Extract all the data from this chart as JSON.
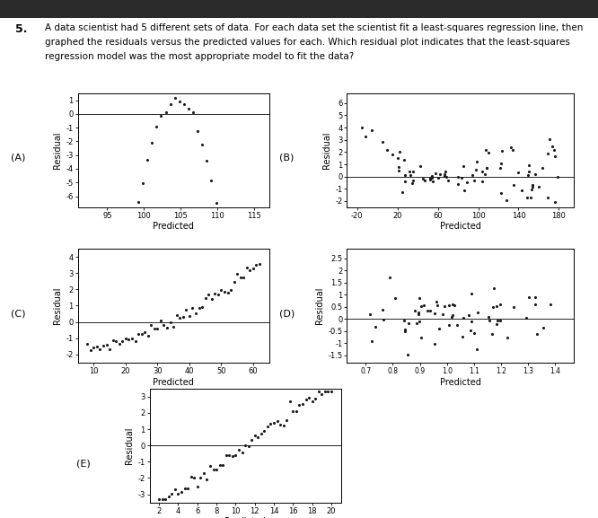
{
  "background_color": "#ffffff",
  "plot_bg": "#ffffff",
  "dot_color": "#1a1a1a",
  "dot_size": 5,
  "title_number": "5.",
  "question_lines": [
    "A data scientist had 5 different sets of data. For each data set the scientist fit a least-squares regression line, then",
    "graphed the residuals versus the predicted values for each. Which residual plot indicates that the least-squares",
    "regression model was the most appropriate model to fit the data?"
  ],
  "plots": [
    {
      "label": "(A)",
      "xlabel": "Predicted",
      "ylabel": "Residual",
      "yticks": [
        1,
        0,
        -1,
        -2,
        -3,
        -4,
        -5,
        -6
      ],
      "xticks": [
        95,
        100,
        105,
        110,
        115
      ],
      "xlim": [
        91,
        117
      ],
      "ylim": [
        -6.8,
        1.5
      ]
    },
    {
      "label": "(B)",
      "xlabel": "Predicted",
      "ylabel": "Residual",
      "yticks": [
        6,
        5,
        4,
        3,
        2,
        1,
        0,
        -1,
        -2
      ],
      "xticks": [
        -20,
        20,
        60,
        100,
        140,
        180
      ],
      "xlim": [
        -30,
        195
      ],
      "ylim": [
        -2.5,
        6.8
      ]
    },
    {
      "label": "(C)",
      "xlabel": "Predicted",
      "ylabel": "Residual",
      "yticks": [
        4,
        3,
        2,
        1,
        0,
        -1,
        -2
      ],
      "xticks": [
        10,
        20,
        30,
        40,
        50,
        60
      ],
      "xlim": [
        5,
        65
      ],
      "ylim": [
        -2.5,
        4.5
      ]
    },
    {
      "label": "(D)",
      "xlabel": "Predicted",
      "ylabel": "Residual",
      "yticks": [
        2.5,
        2.0,
        1.5,
        1.0,
        0.5,
        0.0,
        -0.5,
        -1.0,
        -1.5
      ],
      "xtick_labels": [
        "0.7",
        "0.8",
        "0.9",
        "1.0",
        "1.1",
        "1.2",
        "1.3",
        "1.4"
      ],
      "xticks": [
        0.7,
        0.8,
        0.9,
        1.0,
        1.1,
        1.2,
        1.3,
        1.4
      ],
      "xlim": [
        0.63,
        1.47
      ],
      "ylim": [
        -1.8,
        2.9
      ]
    },
    {
      "label": "(E)",
      "xlabel": "Predicted",
      "ylabel": "Residual",
      "yticks": [
        3,
        2,
        1,
        0,
        -1,
        -2,
        -3
      ],
      "xticks": [
        2,
        4,
        6,
        8,
        10,
        12,
        14,
        16,
        18,
        20
      ],
      "xlim": [
        1,
        21
      ],
      "ylim": [
        -3.5,
        3.5
      ]
    }
  ]
}
